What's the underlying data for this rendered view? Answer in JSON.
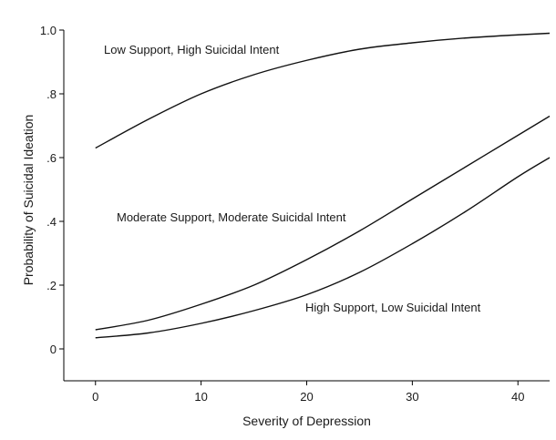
{
  "chart_data": {
    "type": "line",
    "xlabel": "Severity of Depression",
    "ylabel": "Probability of Suicidal Ideation",
    "xlim": [
      -3,
      43
    ],
    "ylim": [
      -0.1,
      1.0
    ],
    "x_ticks": [
      0,
      10,
      20,
      30,
      40
    ],
    "x_tick_labels": [
      "0",
      "10",
      "20",
      "30",
      "40"
    ],
    "y_ticks": [
      0,
      0.2,
      0.4,
      0.6,
      0.8,
      1.0
    ],
    "y_tick_labels": [
      "0",
      ".2",
      ".4",
      ".6",
      ".8",
      "1.0"
    ],
    "grid": false,
    "series": [
      {
        "name": "Low Support, High Suicidal Intent",
        "x": [
          0,
          5,
          10,
          15,
          20,
          25,
          30,
          35,
          40,
          43
        ],
        "values": [
          0.63,
          0.72,
          0.8,
          0.86,
          0.905,
          0.94,
          0.96,
          0.975,
          0.985,
          0.99
        ]
      },
      {
        "name": "Moderate Support, Moderate Suicidal Intent",
        "x": [
          0,
          5,
          10,
          15,
          20,
          25,
          30,
          35,
          40,
          43
        ],
        "values": [
          0.06,
          0.09,
          0.14,
          0.2,
          0.28,
          0.37,
          0.47,
          0.57,
          0.67,
          0.73
        ]
      },
      {
        "name": "High Support, Low Suicidal Intent",
        "x": [
          0,
          5,
          10,
          15,
          20,
          25,
          30,
          35,
          40,
          43
        ],
        "values": [
          0.035,
          0.05,
          0.08,
          0.12,
          0.17,
          0.24,
          0.33,
          0.43,
          0.54,
          0.6
        ]
      }
    ],
    "annotations": [
      "Low Support, High Suicidal Intent",
      "Moderate Support, Moderate Suicidal Intent",
      "High Support, Low Suicidal Intent"
    ]
  }
}
